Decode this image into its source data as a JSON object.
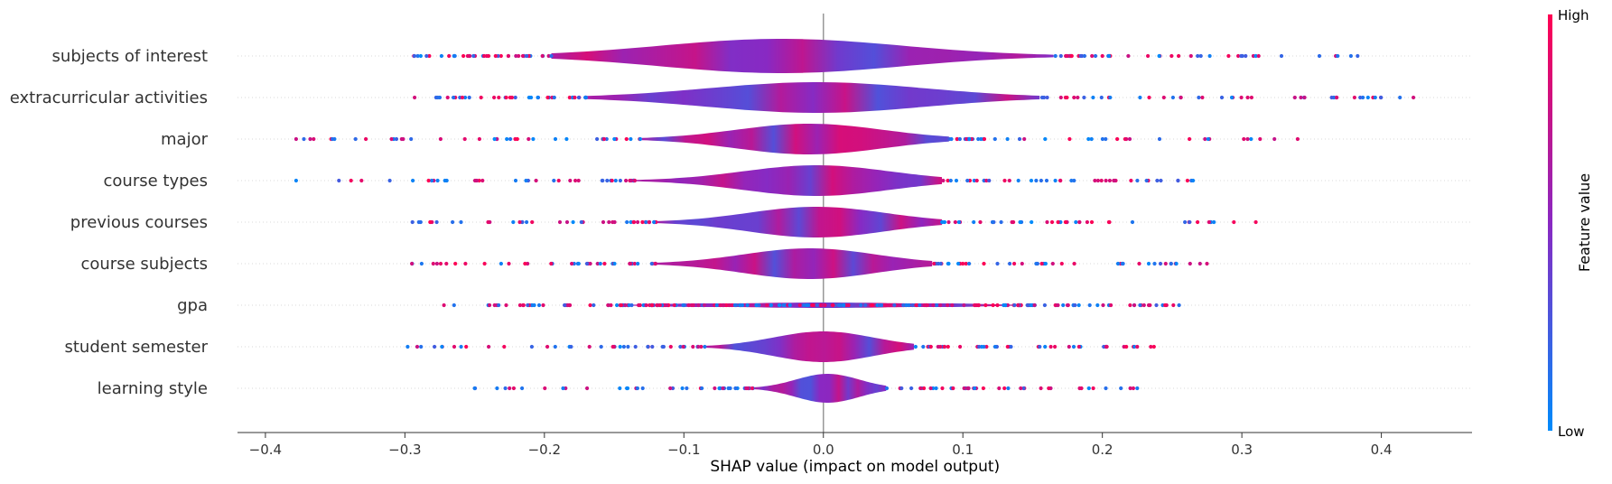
{
  "chart_data": {
    "type": "violin",
    "title": "",
    "xlabel": "SHAP value (impact on model output)",
    "xlim": [
      -0.42,
      0.465
    ],
    "xticks": [
      -0.4,
      -0.3,
      -0.2,
      -0.1,
      0.0,
      0.1,
      0.2,
      0.3,
      0.4
    ],
    "xtick_labels": [
      "−0.4",
      "−0.3",
      "−0.2",
      "−0.1",
      "0.0",
      "0.1",
      "0.2",
      "0.3",
      "0.4"
    ],
    "grid": "dotted horizontal row guides",
    "zero_line": true,
    "colorbar": {
      "title": "Feature value",
      "high_label": "High",
      "low_label": "Low",
      "high_color": "#ff0052",
      "low_color": "#008bfb"
    },
    "features": [
      {
        "name": "subjects of interest",
        "min": -0.295,
        "max": 0.383,
        "core": [
          -0.195,
          0.165
        ],
        "outliers": [
          0.31,
          0.312,
          0.383,
          -0.255,
          -0.24
        ]
      },
      {
        "name": "extracurricular activities",
        "min": -0.298,
        "max": 0.423,
        "core": [
          -0.17,
          0.155
        ],
        "outliers": [
          0.338,
          0.345,
          0.423,
          -0.275
        ]
      },
      {
        "name": "major",
        "min": -0.378,
        "max": 0.34,
        "core": [
          -0.13,
          0.09
        ],
        "outliers": [
          -0.378,
          -0.352,
          -0.328,
          0.34
        ]
      },
      {
        "name": "course types",
        "min": -0.378,
        "max": 0.265,
        "core": [
          -0.135,
          0.085
        ],
        "outliers": [
          -0.378,
          -0.27,
          0.265
        ]
      },
      {
        "name": "previous courses",
        "min": -0.295,
        "max": 0.31,
        "core": [
          -0.12,
          0.085
        ],
        "outliers": [
          0.28,
          0.31,
          -0.29
        ]
      },
      {
        "name": "course subjects",
        "min": -0.295,
        "max": 0.275,
        "core": [
          -0.12,
          0.078
        ],
        "outliers": [
          -0.295,
          -0.288,
          0.27,
          0.275
        ]
      },
      {
        "name": "gpa",
        "min": -0.272,
        "max": 0.255,
        "core": [
          -0.14,
          0.14
        ],
        "outliers": [
          -0.272,
          0.245,
          0.255
        ]
      },
      {
        "name": "student semester",
        "min": -0.298,
        "max": 0.237,
        "core": [
          -0.085,
          0.065
        ],
        "outliers": [
          -0.298,
          0.225,
          0.237
        ]
      },
      {
        "name": "learning style",
        "min": -0.25,
        "max": 0.225,
        "core": [
          -0.05,
          0.045
        ],
        "outliers": [
          -0.25,
          -0.225,
          0.225
        ]
      }
    ]
  }
}
